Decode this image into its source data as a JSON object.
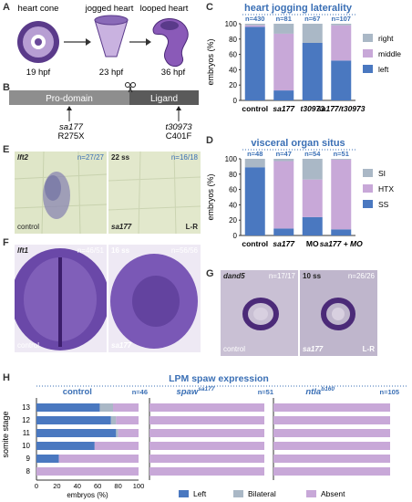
{
  "labels": {
    "A": "A",
    "B": "B",
    "C": "C",
    "D": "D",
    "E": "E",
    "F": "F",
    "G": "G",
    "H": "H"
  },
  "panelA": {
    "stages": [
      {
        "name": "heart cone",
        "time": "19 hpf"
      },
      {
        "name": "jogged heart",
        "time": "23 hpf"
      },
      {
        "name": "looped heart",
        "time": "36 hpf"
      }
    ]
  },
  "panelB": {
    "prodomain": "Pro-domain",
    "ligand": "Ligand",
    "mut1": "sa177",
    "mut1_change": "R275X",
    "mut2": "t30973",
    "mut2_change": "C401F"
  },
  "colors": {
    "left": "#4a78c0",
    "middle": "#c8a8d8",
    "right": "#aab8c6",
    "photo_bg": "#dfe6c8",
    "photo_f": "#eee9f4",
    "dark_purple": "#4b2a78",
    "blue_text": "#3a6fb5"
  },
  "chart_data": [
    {
      "type": "bar",
      "id": "C",
      "title": "heart jogging laterality",
      "ylabel": "embryos (%)",
      "ylim": [
        0,
        100
      ],
      "yticks": [
        "0",
        "20",
        "40",
        "60",
        "80",
        "100"
      ],
      "categories": [
        "control",
        "sa177",
        "t30973",
        "sa177/t30973"
      ],
      "n": [
        "n=430",
        "n=81",
        "n=67",
        "n=107"
      ],
      "series": [
        {
          "name": "left",
          "values": [
            96,
            13,
            75,
            52
          ]
        },
        {
          "name": "middle",
          "values": [
            2,
            74,
            0,
            46
          ]
        },
        {
          "name": "right",
          "values": [
            2,
            13,
            25,
            2
          ]
        }
      ],
      "legend": [
        "right",
        "middle",
        "left"
      ]
    },
    {
      "type": "bar",
      "id": "D",
      "title": "visceral organ situs",
      "ylabel": "embryos (%)",
      "ylim": [
        0,
        100
      ],
      "yticks": [
        "0",
        "20",
        "40",
        "60",
        "80",
        "100"
      ],
      "categories": [
        "control",
        "sa177",
        "MO",
        "sa177 + MO"
      ],
      "n": [
        "n=48",
        "n=47",
        "n=54",
        "n=51"
      ],
      "series": [
        {
          "name": "SS",
          "values": [
            89,
            9,
            24,
            8
          ]
        },
        {
          "name": "HTX",
          "values": [
            0,
            88,
            49,
            91
          ]
        },
        {
          "name": "SI",
          "values": [
            11,
            3,
            27,
            1
          ]
        }
      ],
      "legend": [
        "SI",
        "HTX",
        "SS"
      ]
    },
    {
      "type": "bar",
      "id": "H",
      "title": "LPM spaw expression",
      "orientation": "horizontal",
      "ylabel": "somite stage",
      "xlabel": "embryos (%)",
      "xlim": [
        0,
        100
      ],
      "xticks": [
        "0",
        "20",
        "40",
        "60",
        "80",
        "100"
      ],
      "stages": [
        "13",
        "12",
        "11",
        "10",
        "9",
        "8"
      ],
      "panels": [
        {
          "name": "control",
          "n": "n=46",
          "left": [
            62,
            73,
            78,
            57,
            22,
            0
          ],
          "bilateral": [
            13,
            5,
            2,
            0,
            0,
            0
          ]
        },
        {
          "name": "spaw",
          "sup": "sa177",
          "n": "n=51",
          "left": [
            0,
            0,
            0,
            0,
            0,
            0
          ],
          "bilateral": [
            0,
            0,
            0,
            0,
            0,
            0
          ]
        },
        {
          "name": "ntla",
          "sup": "b160",
          "n": "n=105",
          "left": [
            0,
            0,
            0,
            0,
            0,
            0
          ],
          "bilateral": [
            0,
            0,
            0,
            0,
            0,
            0
          ]
        }
      ],
      "legend": [
        "Left",
        "Bilateral",
        "Absent"
      ]
    }
  ],
  "panelE": [
    {
      "gene": "lft2",
      "n": "n=27/27",
      "label": "control"
    },
    {
      "stage": "22 ss",
      "n": "n=16/18",
      "label": "sa177",
      "note": "L-R"
    }
  ],
  "panelF": [
    {
      "gene": "lft1",
      "n": "n=46/51",
      "label": "control"
    },
    {
      "stage": "16 ss",
      "n": "n=56/56",
      "label": "sa177"
    }
  ],
  "panelG": [
    {
      "gene": "dand5",
      "n": "n=17/17",
      "label": "control"
    },
    {
      "stage": "10 ss",
      "n": "n=26/26",
      "label": "sa177",
      "note": "L-R"
    }
  ]
}
